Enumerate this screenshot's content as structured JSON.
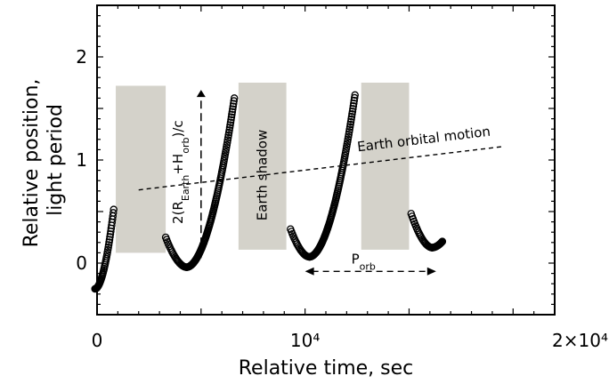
{
  "chart_data": {
    "type": "scatter",
    "title": "",
    "xlabel": "Relative time, sec",
    "ylabel": [
      "Relative position,",
      "light period"
    ],
    "xlim": [
      0,
      22000
    ],
    "ylim": [
      -0.5,
      2.5
    ],
    "x_ticks": [
      {
        "value": 0,
        "label": "0"
      },
      {
        "value": 10000,
        "label": "10⁴"
      },
      {
        "value": 20000,
        "label": "2×10⁴"
      }
    ],
    "y_ticks": [
      {
        "value": 0,
        "label": "0"
      },
      {
        "value": 1,
        "label": "1"
      },
      {
        "value": 2,
        "label": "2"
      }
    ],
    "grid": false,
    "shadow_intervals": [
      {
        "x": [
          900,
          3300
        ],
        "y": [
          0.1,
          1.72
        ]
      },
      {
        "x": [
          6800,
          9100
        ],
        "y": [
          0.13,
          1.75
        ]
      },
      {
        "x": [
          12700,
          15000
        ],
        "y": [
          0.13,
          1.75
        ]
      }
    ],
    "trend_line": {
      "name": "Earth orbital motion",
      "x": [
        2000,
        19500
      ],
      "y": [
        0.71,
        1.13
      ]
    },
    "arcs": [
      {
        "x_start": -100,
        "x_min": -100,
        "x_end": 800,
        "y_start": -0.25,
        "y_min": -0.25,
        "y_end": 0.52
      },
      {
        "x_start": 3300,
        "x_min": 4300,
        "x_end": 6600,
        "y_start": 0.25,
        "y_min": -0.04,
        "y_end": 1.6
      },
      {
        "x_start": 9300,
        "x_min": 10200,
        "x_end": 12400,
        "y_start": 0.33,
        "y_min": 0.06,
        "y_end": 1.63
      },
      {
        "x_start": 15100,
        "x_min": 16100,
        "x_end": 16600,
        "y_start": 0.48,
        "y_min": 0.15,
        "y_end": 0.21
      }
    ],
    "annotations": {
      "shadow_label": "Earth shadow",
      "height_label": "2(R",
      "height_sub1": "Earth",
      "height_plus": "+H",
      "height_sub2": "orb",
      "height_tail": ")/c",
      "height_arrow": {
        "x": 5000,
        "y": [
          0.05,
          1.68
        ]
      },
      "period_label": "P",
      "period_sub": "orb",
      "period_arrow": {
        "x": [
          10000,
          16300
        ],
        "y": -0.08
      }
    }
  }
}
